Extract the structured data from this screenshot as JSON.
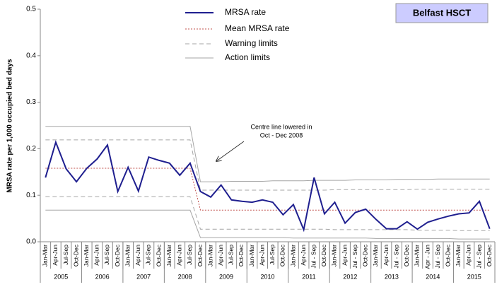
{
  "chart_data": {
    "type": "line",
    "badge": "Belfast HSCT",
    "y_label": "MRSA rate per 1,000 occupied bed days",
    "annotation": [
      "Centre line lowered in",
      "Oct - Dec 2008"
    ],
    "categories": [
      "Jan-Mar",
      "Apr-Jun",
      "Jul-Sep",
      "Oct-Dec",
      "Jan-Mar",
      "Apr-Jun",
      "Jul-Sep",
      "Oct-Dec",
      "Jan-Mar",
      "Apr-Jun",
      "Jul-Sep",
      "Oct-Dec",
      "Jan-Mar",
      "Apr-Jun",
      "Jul-Sep",
      "Oct-Dec",
      "Jan-Mar",
      "Apr-Jun",
      "Jul-Sep",
      "Oct-Dec",
      "Jan-Mar",
      "Apr-Jun",
      "Jul-Sep",
      "Oct-Dec",
      "Jan-Mar",
      "Apr-Jun",
      "Jul - Sep",
      "Oct-Dec",
      "Jan-Mar",
      "Apr-Jun",
      "Jul - Sep",
      "Oct-Dec",
      "Jan-Mar",
      "Apr-Jun",
      "Jul - Sep",
      "Oct-Dec",
      "Jan-Mar",
      "Apr - Jun",
      "Jul - Sep",
      "Oct-Dec",
      "Jan-Mar",
      "Apr-Jun",
      "Jul - Sep",
      "Oct-Dec"
    ],
    "years": [
      "2005",
      "2006",
      "2007",
      "2008",
      "2009",
      "2010",
      "2011",
      "2012",
      "2013",
      "2014",
      "2015"
    ],
    "ylim": [
      0,
      0.5
    ],
    "yticks": [
      {
        "value": 0,
        "label": "0.0"
      },
      0.1,
      0.2,
      0.3,
      0.4,
      0.5
    ],
    "series": [
      {
        "name": "MRSA rate",
        "color": "#1f1f8f",
        "style": "solid",
        "width": 2,
        "values": [
          0.138,
          0.214,
          0.157,
          0.129,
          0.158,
          0.178,
          0.208,
          0.108,
          0.16,
          0.109,
          0.182,
          0.175,
          0.169,
          0.143,
          0.169,
          0.108,
          0.096,
          0.122,
          0.09,
          0.087,
          0.085,
          0.09,
          0.085,
          0.058,
          0.08,
          0.026,
          0.138,
          0.06,
          0.085,
          0.04,
          0.063,
          0.07,
          0.048,
          0.028,
          0.028,
          0.043,
          0.027,
          0.042,
          0.049,
          0.055,
          0.06,
          0.062,
          0.087,
          0.028
        ]
      },
      {
        "name": "Mean MRSA rate",
        "color": "#c0504d",
        "style": "dotted",
        "width": 1,
        "values": [
          0.158,
          0.158,
          0.158,
          0.158,
          0.158,
          0.158,
          0.158,
          0.158,
          0.158,
          0.158,
          0.158,
          0.158,
          0.158,
          0.158,
          0.158,
          0.068,
          0.068,
          0.068,
          0.068,
          0.068,
          0.068,
          0.068,
          0.068,
          0.068,
          0.068,
          0.068,
          0.068,
          0.068,
          0.068,
          0.068,
          0.068,
          0.068,
          0.068,
          0.068,
          0.068,
          0.068,
          0.068,
          0.068,
          0.068,
          0.068,
          0.068,
          0.068,
          0.068,
          0.068
        ]
      },
      {
        "name": "Warning limits",
        "color": "#a6a6a6",
        "style": "dashed",
        "width": 1,
        "upper": [
          0.219,
          0.219,
          0.219,
          0.219,
          0.219,
          0.219,
          0.219,
          0.219,
          0.219,
          0.219,
          0.219,
          0.219,
          0.219,
          0.219,
          0.219,
          0.111,
          0.111,
          0.111,
          0.111,
          0.111,
          0.111,
          0.111,
          0.111,
          0.111,
          0.111,
          0.111,
          0.111,
          0.111,
          0.112,
          0.112,
          0.112,
          0.112,
          0.112,
          0.112,
          0.112,
          0.112,
          0.113,
          0.113,
          0.113,
          0.113,
          0.113,
          0.113,
          0.113,
          0.113
        ],
        "lower": [
          0.097,
          0.097,
          0.097,
          0.097,
          0.097,
          0.097,
          0.097,
          0.097,
          0.097,
          0.097,
          0.097,
          0.097,
          0.097,
          0.097,
          0.097,
          0.027,
          0.027,
          0.027,
          0.027,
          0.027,
          0.027,
          0.027,
          0.027,
          0.027,
          0.027,
          0.027,
          0.027,
          0.027,
          0.026,
          0.026,
          0.026,
          0.026,
          0.026,
          0.026,
          0.026,
          0.026,
          0.025,
          0.025,
          0.025,
          0.025,
          0.024,
          0.024,
          0.024,
          0.024
        ]
      },
      {
        "name": "Action limits",
        "color": "#a6a6a6",
        "style": "solid",
        "width": 1,
        "upper": [
          0.248,
          0.248,
          0.248,
          0.248,
          0.248,
          0.248,
          0.248,
          0.248,
          0.248,
          0.248,
          0.248,
          0.248,
          0.248,
          0.248,
          0.248,
          0.129,
          0.129,
          0.129,
          0.13,
          0.13,
          0.13,
          0.13,
          0.131,
          0.131,
          0.131,
          0.131,
          0.132,
          0.132,
          0.132,
          0.132,
          0.133,
          0.133,
          0.133,
          0.133,
          0.134,
          0.134,
          0.134,
          0.134,
          0.135,
          0.135,
          0.135,
          0.135,
          0.135,
          0.135
        ],
        "lower": [
          0.068,
          0.068,
          0.068,
          0.068,
          0.068,
          0.068,
          0.068,
          0.068,
          0.068,
          0.068,
          0.068,
          0.068,
          0.068,
          0.068,
          0.068,
          0.009,
          0.009,
          0.009,
          0.009,
          0.009,
          0.009,
          0.009,
          0.009,
          0.009,
          0.008,
          0.008,
          0.008,
          0.008,
          0.008,
          0.008,
          0.008,
          0.008,
          0.007,
          0.007,
          0.007,
          0.007,
          0.007,
          0.007,
          0.007,
          0.007,
          0.006,
          0.006,
          0.006,
          0.006
        ]
      }
    ],
    "grid": false
  }
}
